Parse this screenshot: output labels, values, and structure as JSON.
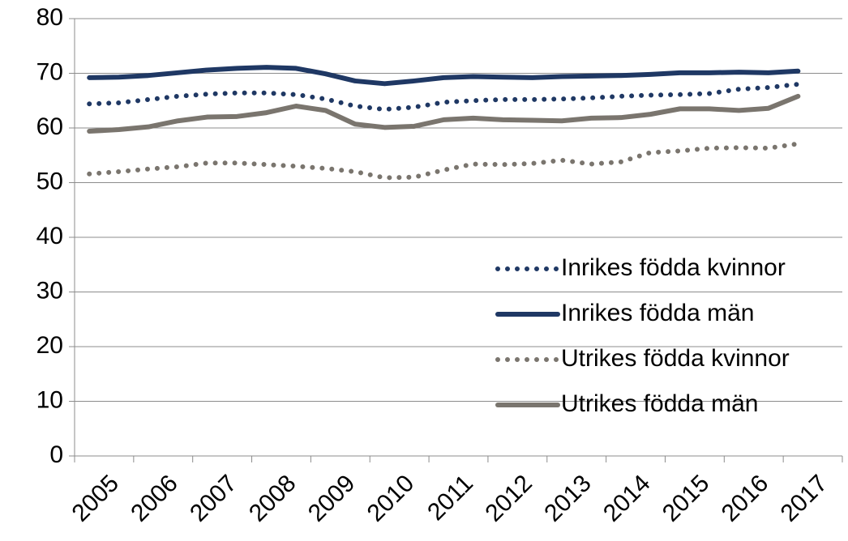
{
  "chart_data": {
    "type": "line",
    "categories": [
      "2005",
      null,
      "2006",
      null,
      "2007",
      null,
      "2008",
      null,
      "2009",
      null,
      "2010",
      null,
      "2011",
      null,
      "2012",
      null,
      "2013",
      null,
      "2014",
      null,
      "2015",
      null,
      "2016",
      null,
      "2017",
      null
    ],
    "series": [
      {
        "name": "Inrikes födda kvinnor",
        "color": "#1f3864",
        "style": "dotted",
        "values": [
          64.4,
          64.6,
          65.2,
          65.8,
          66.2,
          66.4,
          66.4,
          66.1,
          65.3,
          64.0,
          63.4,
          63.8,
          64.7,
          65.0,
          65.2,
          65.2,
          65.3,
          65.5,
          65.8,
          66.0,
          66.1,
          66.3,
          67.1,
          67.4,
          68.0,
          null
        ]
      },
      {
        "name": "Inrikes födda män",
        "color": "#1f3864",
        "style": "solid",
        "values": [
          69.2,
          69.3,
          69.6,
          70.1,
          70.6,
          70.9,
          71.1,
          70.9,
          69.9,
          68.6,
          68.1,
          68.6,
          69.2,
          69.4,
          69.3,
          69.2,
          69.4,
          69.5,
          69.6,
          69.8,
          70.1,
          70.1,
          70.2,
          70.1,
          70.4,
          null
        ]
      },
      {
        "name": "Utrikes födda kvinnor",
        "color": "#7a756e",
        "style": "dotted",
        "values": [
          51.6,
          52.0,
          52.5,
          52.9,
          53.6,
          53.6,
          53.3,
          53.0,
          52.6,
          52.0,
          50.9,
          51.0,
          52.3,
          53.4,
          53.3,
          53.5,
          54.1,
          53.4,
          53.8,
          55.5,
          55.8,
          56.3,
          56.4,
          56.3,
          57.1,
          null
        ]
      },
      {
        "name": "Utrikes födda män",
        "color": "#7a756e",
        "style": "solid",
        "values": [
          59.4,
          59.7,
          60.2,
          61.3,
          62.0,
          62.1,
          62.8,
          64.0,
          63.2,
          60.7,
          60.1,
          60.3,
          61.5,
          61.8,
          61.5,
          61.4,
          61.3,
          61.8,
          61.9,
          62.5,
          63.5,
          63.5,
          63.2,
          63.6,
          65.8,
          null
        ]
      }
    ],
    "ylim": [
      0,
      80
    ],
    "yticks": [
      0,
      10,
      20,
      30,
      40,
      50,
      60,
      70,
      80
    ],
    "grid": true,
    "legend": "right"
  }
}
